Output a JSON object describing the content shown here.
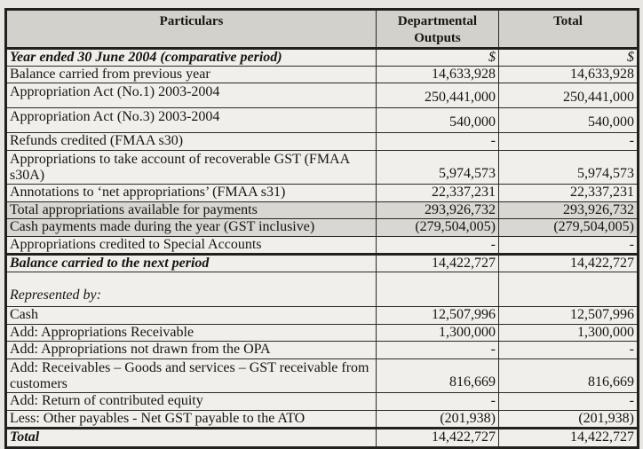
{
  "colors": {
    "page_background": "#e8e6e2",
    "cell_background": "#f1efeb",
    "header_fill": "#d3d1cc",
    "shaded_row_fill": "#d9d7d2",
    "border": "#23211d",
    "text": "#17150f"
  },
  "table": {
    "columns": [
      {
        "label": "Particulars"
      },
      {
        "label": "Departmental Outputs"
      },
      {
        "label": "Total"
      }
    ],
    "rows": [
      {
        "particulars": "Year ended 30 June 2004 (comparative period)",
        "dept": "$",
        "total": "$",
        "style": "emphasis dollar h-dollar"
      },
      {
        "particulars": "Balance carried from previous year",
        "dept": "14,633,928",
        "total": "14,633,928",
        "style": "h-normal"
      },
      {
        "particulars": "Appropriation Act (No.1) 2003-2004",
        "dept": "250,441,000",
        "total": "250,441,000",
        "style": "h-act valign-split"
      },
      {
        "particulars": "Appropriation Act (No.3) 2003-2004",
        "dept": "540,000",
        "total": "540,000",
        "style": "h-act valign-split"
      },
      {
        "particulars": "Refunds credited (FMAA s30)",
        "dept": "-",
        "total": "-",
        "style": "h-normal"
      },
      {
        "particulars": "Appropriations to take account of recoverable GST (FMAA s30A)",
        "dept": "5,974,573",
        "total": "5,974,573",
        "style": "h-twoline valign-split"
      },
      {
        "particulars": "Annotations to ‘net appropriations’ (FMAA s31)",
        "dept": "22,337,231",
        "total": "22,337,231",
        "style": "h-normal"
      },
      {
        "particulars": "Total appropriations available for payments",
        "dept": "293,926,732",
        "total": "293,926,732",
        "style": "h-normal shaded"
      },
      {
        "particulars": "Cash payments made during the year (GST inclusive)",
        "dept": "(279,504,005)",
        "total": "(279,504,005)",
        "style": "h-normal shaded"
      },
      {
        "particulars": "Appropriations credited to Special Accounts",
        "dept": "-",
        "total": "-",
        "style": "h-normal"
      },
      {
        "particulars": "Balance carried to the next period",
        "dept": "14,422,727",
        "total": "14,422,727",
        "style": "emphasis h-balance thick-top"
      },
      {
        "particulars": "Represented by:",
        "dept": "",
        "total": "",
        "style": "repby h-repby"
      },
      {
        "particulars": "Cash",
        "dept": "12,507,996",
        "total": "12,507,996",
        "style": "h-normal"
      },
      {
        "particulars": "Add: Appropriations Receivable",
        "dept": "1,300,000",
        "total": "1,300,000",
        "style": "h-normal"
      },
      {
        "particulars": "Add: Appropriations not drawn from the OPA",
        "dept": "-",
        "total": "-",
        "style": "h-normal"
      },
      {
        "particulars": "Add: Receivables – Goods and services – GST receivable from customers",
        "dept": "816,669",
        "total": "816,669",
        "style": "h-twoline valign-split"
      },
      {
        "particulars": "Add: Return of contributed equity",
        "dept": "-",
        "total": "-",
        "style": "h-normal"
      },
      {
        "particulars": "Less: Other payables - Net GST payable to the ATO",
        "dept": "(201,938)",
        "total": "(201,938)",
        "style": "h-normal"
      },
      {
        "particulars": "Total",
        "dept": "14,422,727",
        "total": "14,422,727",
        "style": "emphasis h-total thick-top"
      }
    ]
  }
}
